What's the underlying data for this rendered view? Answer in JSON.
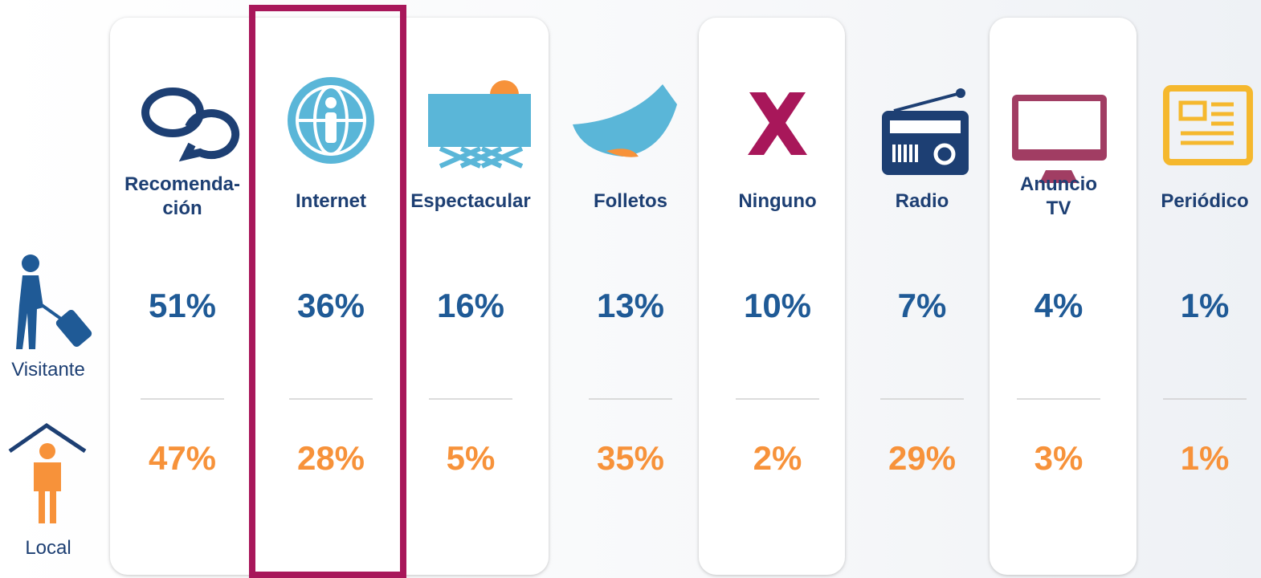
{
  "rows": {
    "visitor": "Visitante",
    "local": "Local"
  },
  "columns": [
    {
      "name_lines": [
        "Recomenda-",
        "ción"
      ],
      "visitor": "51%",
      "local": "47%"
    },
    {
      "name_lines": [
        "Internet"
      ],
      "visitor": "36%",
      "local": "28%"
    },
    {
      "name_lines": [
        "Espectacular"
      ],
      "visitor": "16%",
      "local": "5%"
    },
    {
      "name_lines": [
        "Folletos"
      ],
      "visitor": "13%",
      "local": "35%"
    },
    {
      "name_lines": [
        "Ninguno"
      ],
      "visitor": "10%",
      "local": "2%"
    },
    {
      "name_lines": [
        "Radio"
      ],
      "visitor": "7%",
      "local": "29%"
    },
    {
      "name_lines": [
        "Anuncio",
        "TV"
      ],
      "visitor": "4%",
      "local": "3%"
    },
    {
      "name_lines": [
        "Periódico"
      ],
      "visitor": "1%",
      "local": "1%"
    }
  ]
}
